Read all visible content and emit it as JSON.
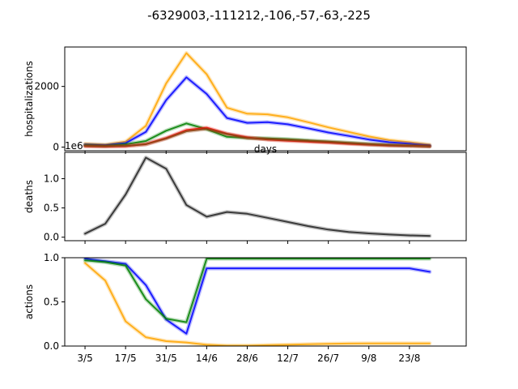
{
  "figure": {
    "title": "-6329003,-111212,-106,-57,-63,-225"
  },
  "chart_data": [
    {
      "type": "line",
      "ylabel": "hospitalizations",
      "xlabel": "days",
      "xlabel_visible": true,
      "x_tick_labels_visible": false,
      "ylim": [
        -120,
        3300
      ],
      "yticks": [
        0,
        2000
      ],
      "ytick_labels": [
        "0",
        "2000"
      ],
      "x": [
        0,
        1,
        2,
        3,
        4,
        5,
        6,
        7,
        8,
        9,
        10,
        11,
        12,
        13,
        14,
        15,
        16,
        17
      ],
      "series": [
        {
          "color": "#FFA500",
          "values": [
            110,
            80,
            180,
            700,
            2100,
            3100,
            2400,
            1300,
            1100,
            1080,
            980,
            820,
            650,
            500,
            350,
            230,
            160,
            80
          ]
        },
        {
          "color": "#0000FF",
          "values": [
            80,
            60,
            130,
            500,
            1550,
            2300,
            1750,
            960,
            800,
            820,
            750,
            620,
            480,
            370,
            250,
            160,
            110,
            50
          ]
        },
        {
          "color": "#008000",
          "values": [
            60,
            40,
            90,
            200,
            540,
            780,
            590,
            340,
            300,
            290,
            260,
            220,
            180,
            140,
            100,
            70,
            50,
            30
          ]
        },
        {
          "color": "#FF0000",
          "values": [
            30,
            20,
            30,
            100,
            300,
            560,
            640,
            440,
            320,
            250,
            210,
            180,
            150,
            110,
            80,
            55,
            40,
            25
          ]
        },
        {
          "color": "#8B4513",
          "values": [
            40,
            30,
            40,
            90,
            280,
            520,
            600,
            430,
            300,
            260,
            230,
            200,
            170,
            130,
            90,
            60,
            40,
            25
          ]
        }
      ]
    },
    {
      "type": "line",
      "ylabel": "deaths",
      "offset_text": "1e6",
      "x_tick_labels_visible": false,
      "ylim": [
        -0.06,
        1.45
      ],
      "yticks": [
        0,
        0.5,
        1
      ],
      "ytick_labels": [
        "0.0",
        "0.5",
        "1.0"
      ],
      "x": [
        0,
        1,
        2,
        3,
        4,
        5,
        6,
        7,
        8,
        9,
        10,
        11,
        12,
        13,
        14,
        15,
        16,
        17
      ],
      "series": [
        {
          "color": "#222222",
          "values": [
            0.06,
            0.23,
            0.73,
            1.36,
            1.17,
            0.55,
            0.35,
            0.43,
            0.4,
            0.33,
            0.26,
            0.19,
            0.13,
            0.09,
            0.065,
            0.045,
            0.03,
            0.022
          ]
        }
      ]
    },
    {
      "type": "line",
      "ylabel": "actions",
      "ylim": [
        0,
        1.0
      ],
      "yticks": [
        0,
        0.5,
        1
      ],
      "ytick_labels": [
        "0.0",
        "0.5",
        "1.0"
      ],
      "xticks": [
        0,
        2,
        4,
        6,
        8,
        10,
        12,
        14,
        16
      ],
      "xtick_labels": [
        "3/5",
        "17/5",
        "31/5",
        "14/6",
        "28/6",
        "12/7",
        "26/7",
        "9/8",
        "23/8"
      ],
      "x": [
        0,
        1,
        2,
        3,
        4,
        5,
        6,
        7,
        8,
        9,
        10,
        11,
        12,
        13,
        14,
        15,
        16,
        17
      ],
      "series": [
        {
          "color": "#FFA500",
          "values": [
            0.94,
            0.74,
            0.28,
            0.1,
            0.055,
            0.04,
            0.015,
            0.005,
            0.005,
            0.01,
            0.015,
            0.02,
            0.025,
            0.028,
            0.03,
            0.03,
            0.03,
            0.03
          ]
        },
        {
          "color": "#0000FF",
          "values": [
            0.99,
            0.96,
            0.93,
            0.69,
            0.3,
            0.14,
            0.88,
            0.88,
            0.88,
            0.88,
            0.88,
            0.88,
            0.88,
            0.88,
            0.88,
            0.88,
            0.88,
            0.84
          ]
        },
        {
          "color": "#008000",
          "values": [
            0.97,
            0.95,
            0.91,
            0.53,
            0.31,
            0.27,
            0.99,
            0.99,
            0.99,
            0.99,
            0.99,
            0.99,
            0.99,
            0.99,
            0.99,
            0.99,
            0.99,
            0.99
          ]
        }
      ]
    }
  ]
}
